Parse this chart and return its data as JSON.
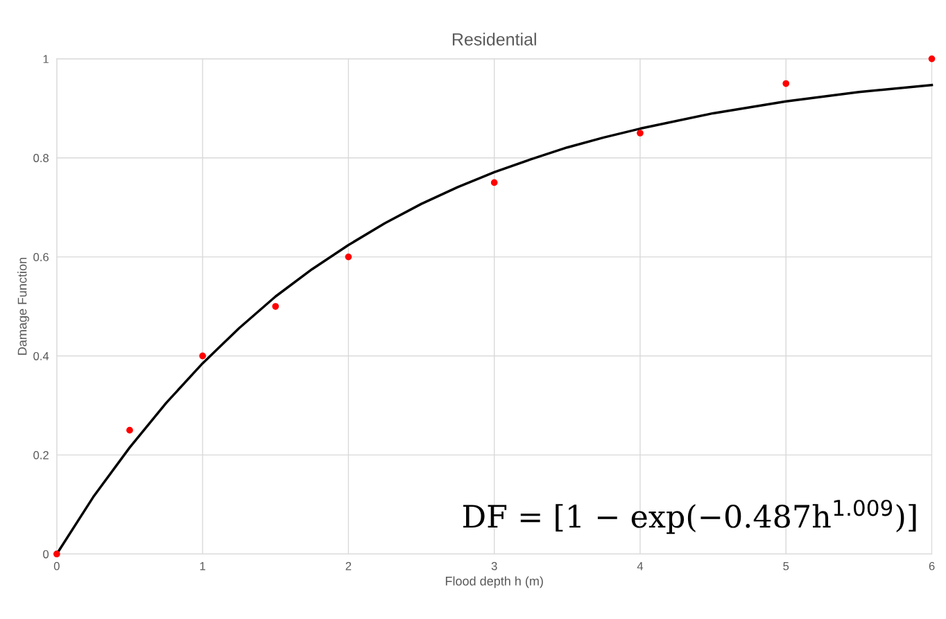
{
  "chart_data": {
    "type": "scatter",
    "title": "Residential",
    "xlabel": "Flood depth h (m)",
    "ylabel": "Damage Function",
    "xlim": [
      0,
      6
    ],
    "xticks": [
      0,
      1,
      2,
      3,
      4,
      5,
      6
    ],
    "ylim": [
      0,
      1
    ],
    "yticks": [
      0,
      0.2,
      0.4,
      0.6,
      0.8,
      1
    ],
    "grid": true,
    "series": [
      {
        "color": "#ff0000",
        "marker": "circle",
        "x": [
          0,
          0.5,
          1,
          1.5,
          2,
          3,
          4,
          5,
          6
        ],
        "values": [
          0,
          0.25,
          0.4,
          0.5,
          0.6,
          0.75,
          0.85,
          0.95,
          1
        ]
      },
      {
        "type": "line",
        "color": "#000000",
        "marker": "none",
        "line_style": "solid",
        "x": [
          0,
          0.25,
          0.5,
          0.75,
          1,
          1.25,
          1.5,
          1.75,
          2,
          2.25,
          2.5,
          2.75,
          3,
          3.25,
          3.5,
          3.75,
          4,
          4.5,
          5,
          5.5,
          6
        ],
        "values": [
          0,
          0.115,
          0.215,
          0.305,
          0.385,
          0.456,
          0.52,
          0.575,
          0.624,
          0.668,
          0.707,
          0.741,
          0.771,
          0.797,
          0.821,
          0.841,
          0.859,
          0.89,
          0.914,
          0.933,
          0.947
        ]
      }
    ],
    "annotations": [
      "DF = [1 − exp(−0.487h$^{1.009}$)]"
    ]
  }
}
